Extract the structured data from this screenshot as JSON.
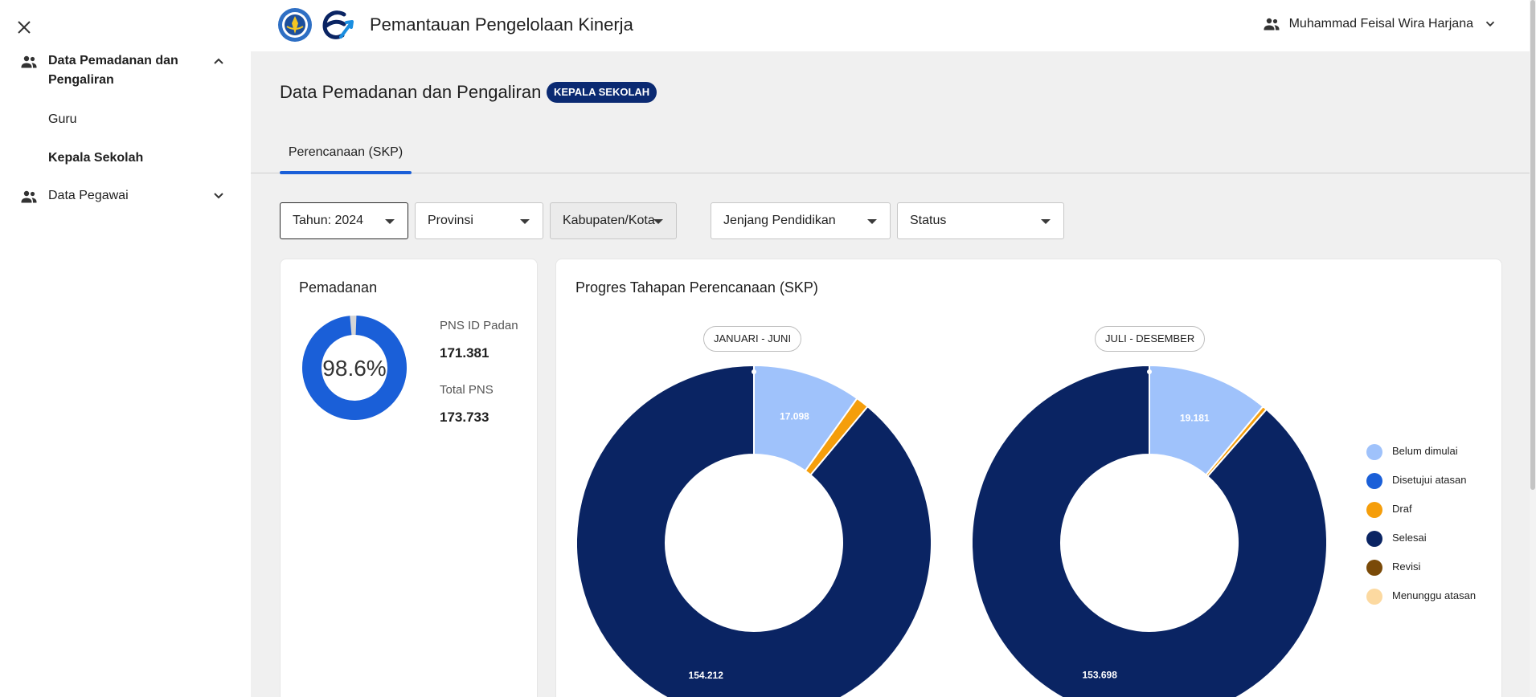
{
  "sidebar": {
    "groups": [
      {
        "label": "Data Pemadanan dan Pengaliran",
        "expanded": true,
        "items": [
          {
            "label": "Guru"
          },
          {
            "label": "Kepala Sekolah",
            "active": true
          }
        ]
      },
      {
        "label": "Data Pegawai",
        "expanded": false,
        "items": []
      }
    ]
  },
  "header": {
    "app_title": "Pemantauan Pengelolaan Kinerja",
    "user_name": "Muhammad Feisal Wira Harjana"
  },
  "page": {
    "title": "Data Pemadanan dan Pengaliran",
    "role_badge": "KEPALA SEKOLAH"
  },
  "tabs": [
    {
      "label": "Perencanaan (SKP)",
      "active": true
    }
  ],
  "filters": {
    "tahun": "Tahun: 2024",
    "provinsi": "Provinsi",
    "kabupaten": "Kabupaten/Kota",
    "jenjang": "Jenjang Pendidikan",
    "status": "Status"
  },
  "pemadanan": {
    "title": "Pemadanan",
    "percent_label": "98.6%",
    "percent": 98.6,
    "pns_padan_label": "PNS ID Padan",
    "pns_padan_value": "171.381",
    "total_pns_label": "Total PNS",
    "total_pns_value": "173.733"
  },
  "progres": {
    "title": "Progres Tahapan Perencanaan (SKP)"
  },
  "colors": {
    "belum_dimulai": "#9fc2fb",
    "disetujui_atasan": "#1a5fd8",
    "draf": "#f59e0b",
    "selesai": "#0a2463",
    "revisi": "#7a4a08",
    "menunggu_atasan": "#fcd9a0"
  },
  "chart_data": [
    {
      "type": "pie",
      "title": "JANUARI - JUNI",
      "categories": [
        "Belum dimulai",
        "Disetujui atasan",
        "Draf",
        "Selesai",
        "Revisi",
        "Menunggu atasan"
      ],
      "values": [
        17098,
        0,
        2080,
        154212,
        0,
        0
      ],
      "data_labels": [
        "17.098",
        "",
        "",
        "154.212",
        "",
        ""
      ],
      "legend": "right"
    },
    {
      "type": "pie",
      "title": "JULI - DESEMBER",
      "categories": [
        "Belum dimulai",
        "Disetujui atasan",
        "Draf",
        "Selesai",
        "Revisi",
        "Menunggu atasan"
      ],
      "values": [
        19181,
        0,
        700,
        153698,
        0,
        0
      ],
      "data_labels": [
        "19.181",
        "",
        "",
        "153.698",
        "",
        ""
      ],
      "legend": "right"
    }
  ]
}
